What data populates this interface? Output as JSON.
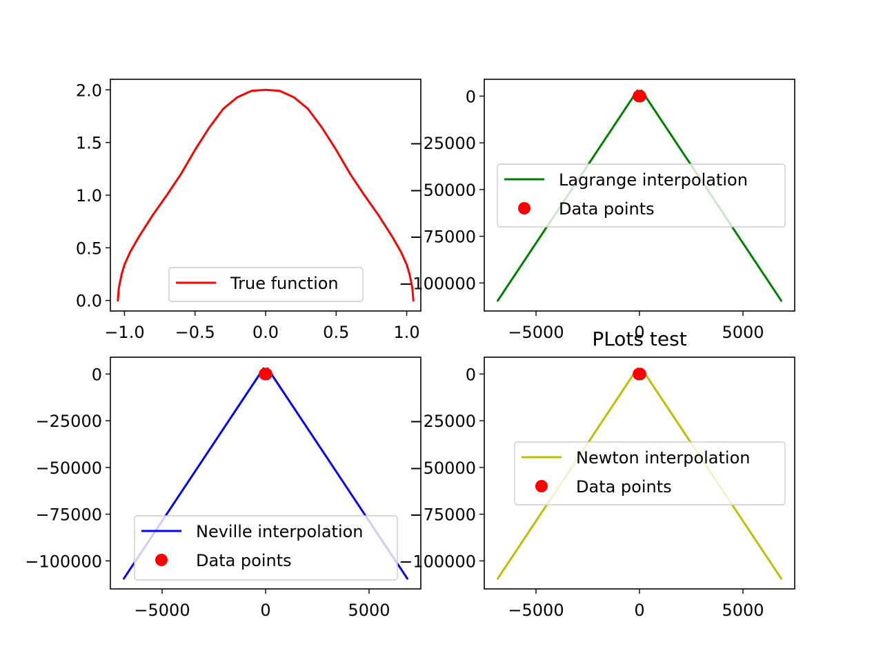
{
  "chart_data": [
    {
      "type": "line",
      "panel": "top-left",
      "title": "",
      "xlabel": "",
      "ylabel": "",
      "xlim": [
        -1.1,
        1.1
      ],
      "ylim": [
        -0.1,
        2.1
      ],
      "xticks": [
        -1.0,
        -0.5,
        0.0,
        0.5,
        1.0
      ],
      "xtick_labels": [
        "−1.0",
        "−0.5",
        "0.0",
        "0.5",
        "1.0"
      ],
      "yticks": [
        0.0,
        0.5,
        1.0,
        1.5,
        2.0
      ],
      "ytick_labels": [
        "0.0",
        "0.5",
        "1.0",
        "1.5",
        "2.0"
      ],
      "grid": false,
      "legend_position": "lower-center",
      "series": [
        {
          "name": "True function",
          "kind": "line",
          "color": "#ff0000",
          "x": [
            -1.047,
            -1.04,
            -1.02,
            -1.0,
            -0.96,
            -0.9,
            -0.8,
            -0.7,
            -0.6,
            -0.5,
            -0.4,
            -0.3,
            -0.2,
            -0.1,
            0.0,
            0.1,
            0.2,
            0.3,
            0.4,
            0.5,
            0.6,
            0.7,
            0.8,
            0.9,
            0.96,
            1.0,
            1.02,
            1.04,
            1.047
          ],
          "y": [
            0.0,
            0.12,
            0.25,
            0.34,
            0.46,
            0.6,
            0.81,
            1.0,
            1.2,
            1.43,
            1.64,
            1.82,
            1.93,
            1.99,
            2.0,
            1.99,
            1.93,
            1.82,
            1.64,
            1.43,
            1.2,
            1.0,
            0.81,
            0.6,
            0.46,
            0.34,
            0.25,
            0.12,
            0.0
          ]
        }
      ]
    },
    {
      "type": "line",
      "panel": "top-right",
      "title": "",
      "xlabel": "",
      "ylabel": "",
      "xlim": [
        -7500,
        7500
      ],
      "ylim": [
        -115000,
        9000
      ],
      "xticks": [
        -5000,
        0,
        5000
      ],
      "xtick_labels": [
        "−5000",
        "0",
        "5000"
      ],
      "yticks": [
        0,
        -25000,
        -50000,
        -75000,
        -100000
      ],
      "ytick_labels": [
        "0",
        "−25000",
        "−50000",
        "−75000",
        "−100000"
      ],
      "grid": false,
      "legend_position": "center-right",
      "series": [
        {
          "name": "Lagrange interpolation",
          "kind": "line",
          "color": "#008000",
          "x": [
            -6850,
            -100,
            0,
            100,
            6850
          ],
          "y": [
            -109500,
            3000,
            0,
            3000,
            -109500
          ]
        },
        {
          "name": "Data points",
          "kind": "scatter",
          "color": "#ff0000",
          "x": [
            -30,
            0,
            30
          ],
          "y": [
            0,
            0,
            0
          ]
        }
      ]
    },
    {
      "type": "line",
      "panel": "bottom-left",
      "title": "",
      "xlabel": "",
      "ylabel": "",
      "xlim": [
        -7500,
        7500
      ],
      "ylim": [
        -115000,
        9000
      ],
      "xticks": [
        -5000,
        0,
        5000
      ],
      "xtick_labels": [
        "−5000",
        "0",
        "5000"
      ],
      "yticks": [
        0,
        -25000,
        -50000,
        -75000,
        -100000
      ],
      "ytick_labels": [
        "0",
        "−25000",
        "−50000",
        "−75000",
        "−100000"
      ],
      "grid": false,
      "legend_position": "lower-center",
      "series": [
        {
          "name": "Neville interpolation",
          "kind": "line",
          "color": "#0000ff",
          "x": [
            -6850,
            -100,
            0,
            100,
            6850
          ],
          "y": [
            -109500,
            3000,
            0,
            3000,
            -109500
          ]
        },
        {
          "name": "Data points",
          "kind": "scatter",
          "color": "#ff0000",
          "x": [
            -30,
            0,
            30
          ],
          "y": [
            0,
            0,
            0
          ]
        }
      ]
    },
    {
      "type": "line",
      "panel": "bottom-right",
      "title": "PLots test",
      "xlabel": "",
      "ylabel": "",
      "xlim": [
        -7500,
        7500
      ],
      "ylim": [
        -115000,
        9000
      ],
      "xticks": [
        -5000,
        0,
        5000
      ],
      "xtick_labels": [
        "−5000",
        "0",
        "5000"
      ],
      "yticks": [
        0,
        -25000,
        -50000,
        -75000,
        -100000
      ],
      "ytick_labels": [
        "0",
        "−25000",
        "−50000",
        "−75000",
        "−100000"
      ],
      "grid": false,
      "legend_position": "center-right",
      "series": [
        {
          "name": "Newton interpolation",
          "kind": "line",
          "color": "#bfbf00",
          "x": [
            -6850,
            -100,
            0,
            100,
            6850
          ],
          "y": [
            -109500,
            3000,
            0,
            3000,
            -109500
          ]
        },
        {
          "name": "Data points",
          "kind": "scatter",
          "color": "#ff0000",
          "x": [
            -30,
            0,
            30
          ],
          "y": [
            0,
            0,
            0
          ]
        }
      ]
    }
  ]
}
